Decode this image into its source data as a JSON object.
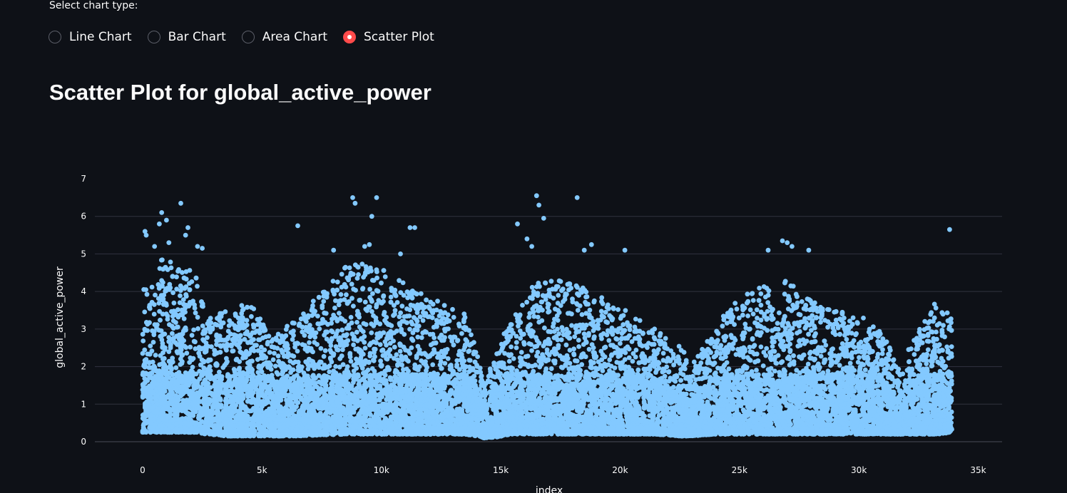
{
  "controls": {
    "label": "Select chart type:",
    "options": [
      {
        "label": "Line Chart",
        "selected": false
      },
      {
        "label": "Bar Chart",
        "selected": false
      },
      {
        "label": "Area Chart",
        "selected": false
      },
      {
        "label": "Scatter Plot",
        "selected": true
      }
    ]
  },
  "colors": {
    "background": "#0e1117",
    "marker": "#83c9ff",
    "gridline": "#31333f",
    "radio_selected": "#ff4b4b"
  },
  "chart_data": {
    "type": "scatter",
    "title": "Scatter Plot for global_active_power",
    "xlabel": "index",
    "ylabel": "global_active_power",
    "xlim": [
      -2000,
      36000
    ],
    "ylim": [
      0,
      7
    ],
    "xticks": [
      0,
      5000,
      10000,
      15000,
      20000,
      25000,
      30000,
      35000
    ],
    "xtick_labels": [
      "0",
      "5k",
      "10k",
      "15k",
      "20k",
      "25k",
      "30k",
      "35k"
    ],
    "yticks": [
      0,
      1,
      2,
      3,
      4,
      5,
      6,
      7
    ],
    "ytick_labels": [
      "0",
      "1",
      "2",
      "3",
      "4",
      "5",
      "6",
      "7"
    ],
    "grid": true,
    "legend": "none",
    "series": [
      {
        "points_count": 34000,
        "x_range": [
          0,
          33900
        ],
        "y_range": [
          0.1,
          6.6
        ],
        "envelope": [
          [
            0,
            0.25,
            4.3
          ],
          [
            300,
            0.25,
            4.0
          ],
          [
            800,
            0.25,
            5.0
          ],
          [
            1500,
            0.25,
            4.6
          ],
          [
            2200,
            0.25,
            4.7
          ],
          [
            2700,
            0.2,
            3.3
          ],
          [
            3500,
            0.15,
            3.6
          ],
          [
            4500,
            0.15,
            3.7
          ],
          [
            5500,
            0.15,
            2.8
          ],
          [
            6500,
            0.15,
            3.3
          ],
          [
            7500,
            0.18,
            4.0
          ],
          [
            8500,
            0.2,
            4.7
          ],
          [
            9500,
            0.2,
            4.8
          ],
          [
            10500,
            0.2,
            4.4
          ],
          [
            11500,
            0.2,
            4.0
          ],
          [
            12500,
            0.2,
            3.7
          ],
          [
            13500,
            0.2,
            3.4
          ],
          [
            14000,
            0.15,
            2.5
          ],
          [
            14300,
            0.1,
            1.5
          ],
          [
            14800,
            0.12,
            2.5
          ],
          [
            15500,
            0.2,
            3.3
          ],
          [
            16500,
            0.2,
            4.3
          ],
          [
            17500,
            0.2,
            4.3
          ],
          [
            18500,
            0.2,
            4.1
          ],
          [
            19500,
            0.2,
            3.8
          ],
          [
            20500,
            0.2,
            3.4
          ],
          [
            21500,
            0.2,
            3.0
          ],
          [
            22500,
            0.15,
            2.6
          ],
          [
            23000,
            0.15,
            2.0
          ],
          [
            24000,
            0.2,
            3.2
          ],
          [
            25000,
            0.2,
            3.8
          ],
          [
            26000,
            0.2,
            4.2
          ],
          [
            27000,
            0.2,
            4.3
          ],
          [
            28000,
            0.2,
            3.8
          ],
          [
            29000,
            0.2,
            3.5
          ],
          [
            30000,
            0.2,
            3.4
          ],
          [
            31000,
            0.2,
            2.9
          ],
          [
            31700,
            0.2,
            2.0
          ],
          [
            32500,
            0.2,
            3.0
          ],
          [
            33300,
            0.2,
            3.8
          ],
          [
            33900,
            0.25,
            3.3
          ]
        ],
        "outliers": [
          [
            100,
            5.6
          ],
          [
            150,
            5.5
          ],
          [
            500,
            5.2
          ],
          [
            700,
            5.8
          ],
          [
            800,
            6.1
          ],
          [
            1000,
            5.9
          ],
          [
            1100,
            5.3
          ],
          [
            1600,
            6.35
          ],
          [
            1800,
            5.5
          ],
          [
            1900,
            5.7
          ],
          [
            2300,
            5.2
          ],
          [
            2500,
            5.15
          ],
          [
            6500,
            5.75
          ],
          [
            8000,
            5.1
          ],
          [
            8800,
            6.5
          ],
          [
            8900,
            6.35
          ],
          [
            9300,
            5.2
          ],
          [
            9500,
            5.25
          ],
          [
            9600,
            6.0
          ],
          [
            9800,
            6.5
          ],
          [
            10800,
            5.0
          ],
          [
            11200,
            5.7
          ],
          [
            11400,
            5.7
          ],
          [
            15700,
            5.8
          ],
          [
            16100,
            5.4
          ],
          [
            16300,
            5.2
          ],
          [
            16500,
            6.55
          ],
          [
            16600,
            6.3
          ],
          [
            16800,
            5.95
          ],
          [
            18200,
            6.5
          ],
          [
            18500,
            5.1
          ],
          [
            18800,
            5.25
          ],
          [
            20200,
            5.1
          ],
          [
            26200,
            5.1
          ],
          [
            26800,
            5.35
          ],
          [
            27000,
            5.3
          ],
          [
            27200,
            5.2
          ],
          [
            27900,
            5.1
          ],
          [
            33800,
            5.65
          ]
        ]
      }
    ]
  }
}
